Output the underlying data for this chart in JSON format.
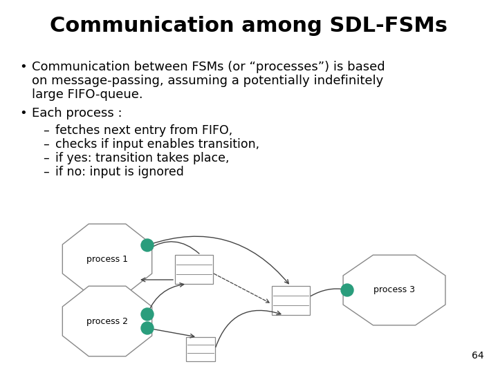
{
  "title": "Communication among SDL-FSMs",
  "title_fontsize": 22,
  "body_fontsize": 13,
  "sub_fontsize": 12.5,
  "bullet1_line1": "Communication between FSMs (or “processes”) is based",
  "bullet1_line2": "on message-passing, assuming a potentially indefinitely",
  "bullet1_line3": "large FIFO-queue.",
  "bullet2": "Each process :",
  "sub_bullets": [
    "fetches next entry from FIFO,",
    "checks if input enables transition,",
    "if yes: transition takes place,",
    "if no: input is ignored"
  ],
  "page_number": "64",
  "bg_color": "#ffffff",
  "text_color": "#000000",
  "process_edge": "#888888",
  "dot_color": "#2a9d7c",
  "arrow_color": "#444444",
  "queue_color": "#888888",
  "title_font": "DejaVu Sans"
}
